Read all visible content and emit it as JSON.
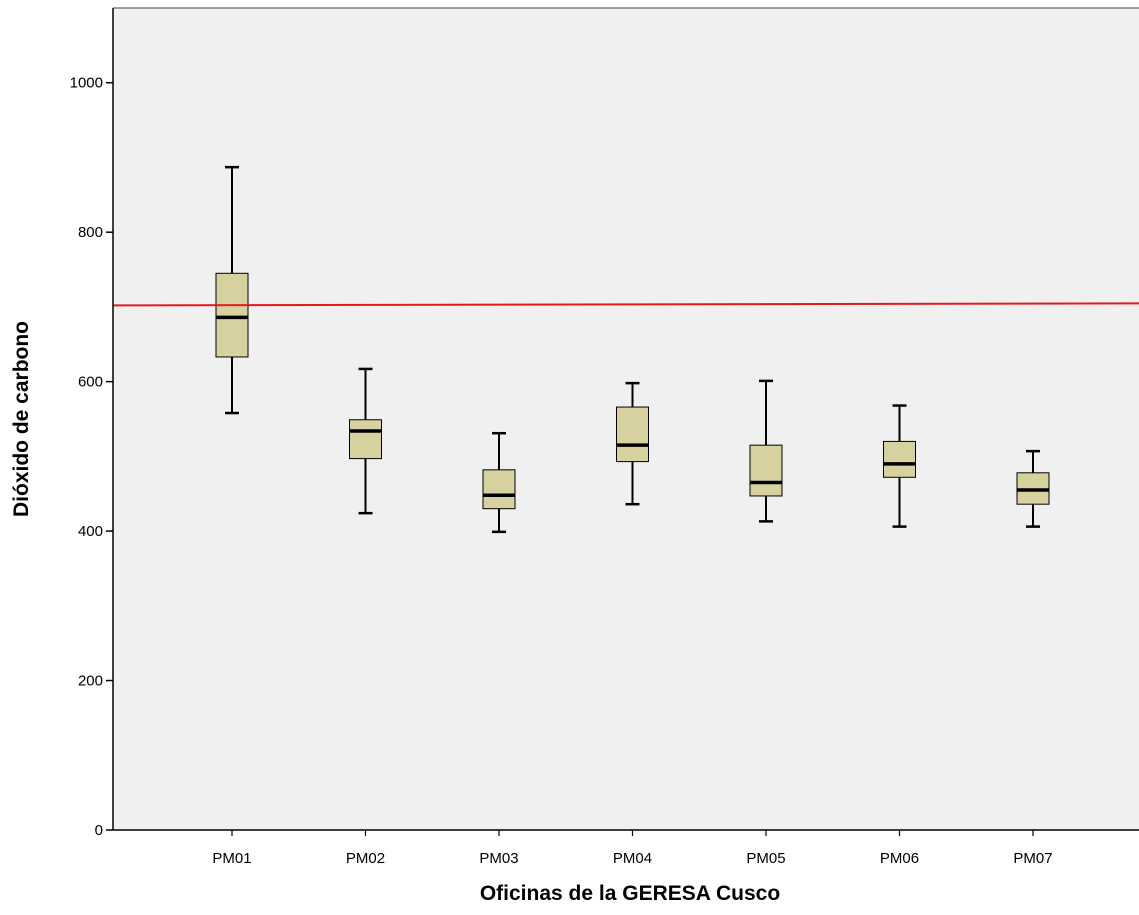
{
  "chart_data": {
    "type": "boxplot",
    "title": "",
    "xlabel": "Oficinas de la GERESA Cusco",
    "ylabel": "Dióxido de carbono",
    "ylim": [
      0,
      1100
    ],
    "yticks": [
      0,
      200,
      400,
      600,
      800,
      1000
    ],
    "categories": [
      "PM01",
      "PM02",
      "PM03",
      "PM04",
      "PM05",
      "PM06",
      "PM07"
    ],
    "boxes": [
      {
        "category": "PM01",
        "min": 558,
        "q1": 633,
        "median": 686,
        "q3": 745,
        "max": 887
      },
      {
        "category": "PM02",
        "min": 424,
        "q1": 497,
        "median": 534,
        "q3": 549,
        "max": 617
      },
      {
        "category": "PM03",
        "min": 399,
        "q1": 430,
        "median": 448,
        "q3": 482,
        "max": 531
      },
      {
        "category": "PM04",
        "min": 436,
        "q1": 493,
        "median": 515,
        "q3": 566,
        "max": 598
      },
      {
        "category": "PM05",
        "min": 413,
        "q1": 447,
        "median": 465,
        "q3": 515,
        "max": 601
      },
      {
        "category": "PM06",
        "min": 406,
        "q1": 472,
        "median": 490,
        "q3": 520,
        "max": 568
      },
      {
        "category": "PM07",
        "min": 406,
        "q1": 436,
        "median": 455,
        "q3": 478,
        "max": 507
      }
    ],
    "reference_line": {
      "value": 704,
      "color": "#e31a1c"
    },
    "box_fill": "#d6d19e",
    "plot_background": "#f0f0f0",
    "grid": false,
    "legend": "none"
  }
}
